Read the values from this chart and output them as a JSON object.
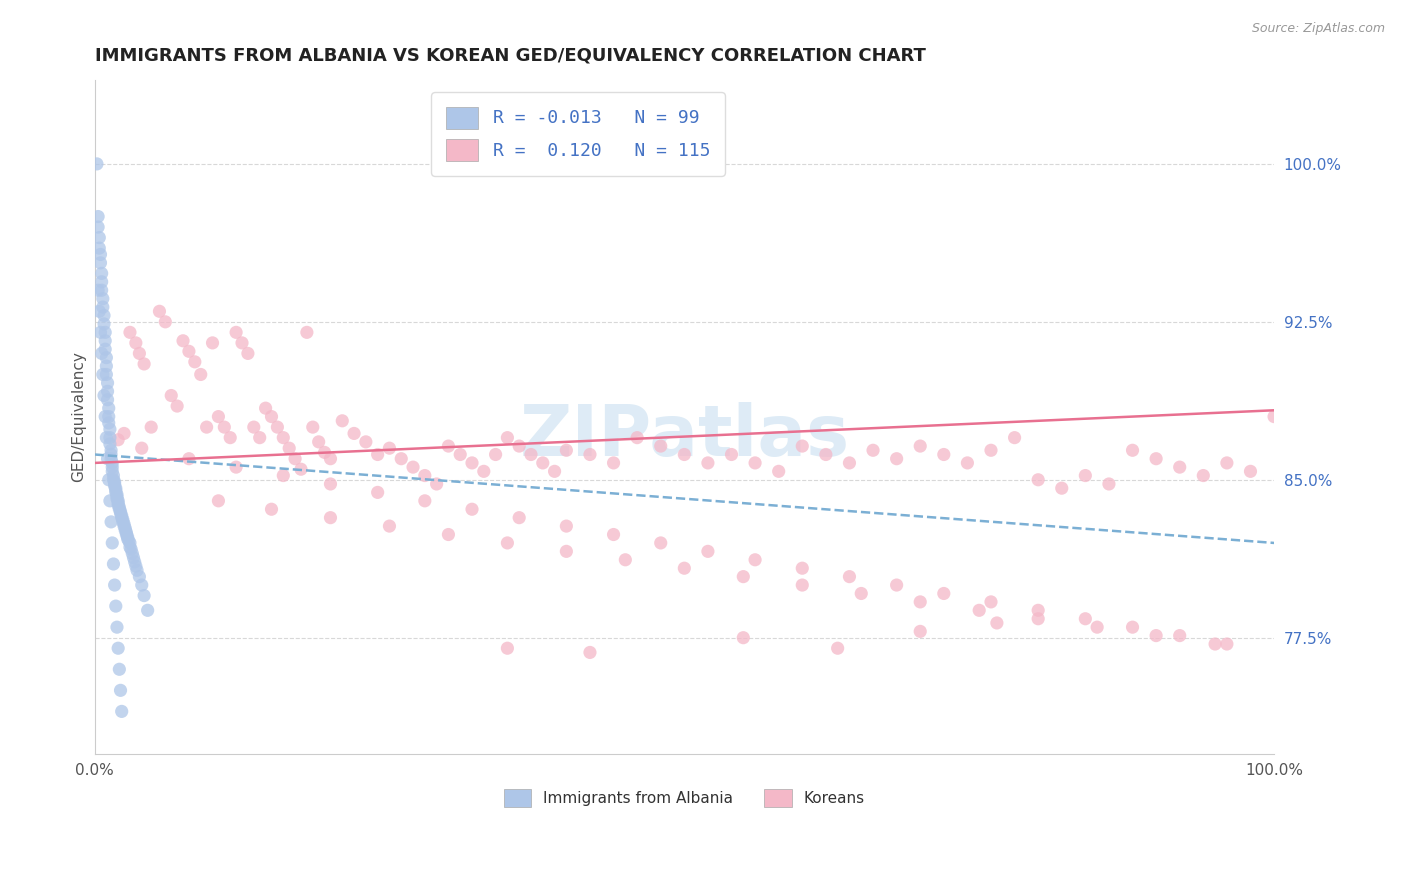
{
  "title": "IMMIGRANTS FROM ALBANIA VS KOREAN GED/EQUIVALENCY CORRELATION CHART",
  "source": "Source: ZipAtlas.com",
  "ylabel": "GED/Equivalency",
  "yticks": [
    "77.5%",
    "85.0%",
    "92.5%",
    "100.0%"
  ],
  "ytick_vals": [
    0.775,
    0.85,
    0.925,
    1.0
  ],
  "xrange": [
    0.0,
    1.0
  ],
  "yrange": [
    0.72,
    1.04
  ],
  "legend_entries": [
    {
      "label": "Immigrants from Albania",
      "color": "#aec6e8",
      "R": "-0.013",
      "N": "99"
    },
    {
      "label": "Koreans",
      "color": "#f4b8c8",
      "R": "0.120",
      "N": "115"
    }
  ],
  "blue_scatter_x": [
    0.002,
    0.003,
    0.003,
    0.004,
    0.004,
    0.005,
    0.005,
    0.006,
    0.006,
    0.006,
    0.007,
    0.007,
    0.008,
    0.008,
    0.009,
    0.009,
    0.009,
    0.01,
    0.01,
    0.01,
    0.011,
    0.011,
    0.011,
    0.012,
    0.012,
    0.012,
    0.013,
    0.013,
    0.013,
    0.014,
    0.014,
    0.014,
    0.015,
    0.015,
    0.015,
    0.016,
    0.016,
    0.017,
    0.017,
    0.017,
    0.018,
    0.018,
    0.018,
    0.019,
    0.019,
    0.019,
    0.02,
    0.02,
    0.02,
    0.021,
    0.021,
    0.022,
    0.022,
    0.023,
    0.023,
    0.024,
    0.024,
    0.025,
    0.025,
    0.026,
    0.026,
    0.027,
    0.027,
    0.028,
    0.028,
    0.029,
    0.03,
    0.03,
    0.031,
    0.032,
    0.033,
    0.034,
    0.035,
    0.036,
    0.038,
    0.04,
    0.042,
    0.045,
    0.003,
    0.004,
    0.005,
    0.006,
    0.007,
    0.008,
    0.009,
    0.01,
    0.011,
    0.012,
    0.013,
    0.014,
    0.015,
    0.016,
    0.017,
    0.018,
    0.019,
    0.02,
    0.021,
    0.022,
    0.023
  ],
  "blue_scatter_y": [
    1.0,
    0.975,
    0.97,
    0.965,
    0.96,
    0.957,
    0.953,
    0.948,
    0.944,
    0.94,
    0.936,
    0.932,
    0.928,
    0.924,
    0.92,
    0.916,
    0.912,
    0.908,
    0.904,
    0.9,
    0.896,
    0.892,
    0.888,
    0.884,
    0.88,
    0.877,
    0.874,
    0.87,
    0.867,
    0.864,
    0.862,
    0.86,
    0.858,
    0.856,
    0.854,
    0.852,
    0.85,
    0.849,
    0.848,
    0.847,
    0.846,
    0.845,
    0.844,
    0.843,
    0.842,
    0.841,
    0.84,
    0.839,
    0.838,
    0.837,
    0.836,
    0.835,
    0.834,
    0.833,
    0.832,
    0.831,
    0.83,
    0.829,
    0.828,
    0.827,
    0.826,
    0.825,
    0.824,
    0.823,
    0.822,
    0.821,
    0.82,
    0.818,
    0.817,
    0.815,
    0.813,
    0.811,
    0.809,
    0.807,
    0.804,
    0.8,
    0.795,
    0.788,
    0.94,
    0.93,
    0.92,
    0.91,
    0.9,
    0.89,
    0.88,
    0.87,
    0.86,
    0.85,
    0.84,
    0.83,
    0.82,
    0.81,
    0.8,
    0.79,
    0.78,
    0.77,
    0.76,
    0.75,
    0.74
  ],
  "pink_scatter_x": [
    0.02,
    0.025,
    0.03,
    0.035,
    0.038,
    0.042,
    0.048,
    0.055,
    0.06,
    0.065,
    0.07,
    0.075,
    0.08,
    0.085,
    0.09,
    0.095,
    0.1,
    0.105,
    0.11,
    0.115,
    0.12,
    0.125,
    0.13,
    0.135,
    0.14,
    0.145,
    0.15,
    0.155,
    0.16,
    0.165,
    0.17,
    0.175,
    0.18,
    0.185,
    0.19,
    0.195,
    0.2,
    0.21,
    0.22,
    0.23,
    0.24,
    0.25,
    0.26,
    0.27,
    0.28,
    0.29,
    0.3,
    0.31,
    0.32,
    0.33,
    0.34,
    0.35,
    0.36,
    0.37,
    0.38,
    0.39,
    0.4,
    0.42,
    0.44,
    0.46,
    0.48,
    0.5,
    0.52,
    0.54,
    0.56,
    0.58,
    0.6,
    0.62,
    0.64,
    0.66,
    0.68,
    0.7,
    0.72,
    0.74,
    0.76,
    0.78,
    0.8,
    0.82,
    0.84,
    0.86,
    0.88,
    0.9,
    0.92,
    0.94,
    0.96,
    0.98,
    1.0,
    0.04,
    0.08,
    0.12,
    0.16,
    0.2,
    0.24,
    0.28,
    0.32,
    0.36,
    0.4,
    0.44,
    0.48,
    0.52,
    0.56,
    0.6,
    0.64,
    0.68,
    0.72,
    0.76,
    0.8,
    0.84,
    0.88,
    0.92,
    0.96,
    0.105,
    0.15,
    0.2,
    0.25,
    0.3,
    0.35,
    0.4,
    0.45,
    0.5,
    0.55,
    0.6,
    0.65,
    0.7,
    0.75,
    0.8,
    0.85,
    0.9,
    0.95,
    0.55,
    0.63,
    0.7,
    0.765,
    0.35,
    0.42
  ],
  "pink_scatter_y": [
    0.869,
    0.872,
    0.92,
    0.915,
    0.91,
    0.905,
    0.875,
    0.93,
    0.925,
    0.89,
    0.885,
    0.916,
    0.911,
    0.906,
    0.9,
    0.875,
    0.915,
    0.88,
    0.875,
    0.87,
    0.92,
    0.915,
    0.91,
    0.875,
    0.87,
    0.884,
    0.88,
    0.875,
    0.87,
    0.865,
    0.86,
    0.855,
    0.92,
    0.875,
    0.868,
    0.863,
    0.86,
    0.878,
    0.872,
    0.868,
    0.862,
    0.865,
    0.86,
    0.856,
    0.852,
    0.848,
    0.866,
    0.862,
    0.858,
    0.854,
    0.862,
    0.87,
    0.866,
    0.862,
    0.858,
    0.854,
    0.864,
    0.862,
    0.858,
    0.87,
    0.866,
    0.862,
    0.858,
    0.862,
    0.858,
    0.854,
    0.866,
    0.862,
    0.858,
    0.864,
    0.86,
    0.866,
    0.862,
    0.858,
    0.864,
    0.87,
    0.85,
    0.846,
    0.852,
    0.848,
    0.864,
    0.86,
    0.856,
    0.852,
    0.858,
    0.854,
    0.88,
    0.865,
    0.86,
    0.856,
    0.852,
    0.848,
    0.844,
    0.84,
    0.836,
    0.832,
    0.828,
    0.824,
    0.82,
    0.816,
    0.812,
    0.808,
    0.804,
    0.8,
    0.796,
    0.792,
    0.788,
    0.784,
    0.78,
    0.776,
    0.772,
    0.84,
    0.836,
    0.832,
    0.828,
    0.824,
    0.82,
    0.816,
    0.812,
    0.808,
    0.804,
    0.8,
    0.796,
    0.792,
    0.788,
    0.784,
    0.78,
    0.776,
    0.772,
    0.775,
    0.77,
    0.778,
    0.782,
    0.77,
    0.768
  ],
  "blue_line_y_start": 0.862,
  "blue_line_y_end": 0.82,
  "pink_line_y_start": 0.858,
  "pink_line_y_end": 0.883,
  "blue_line_color": "#7bafd4",
  "pink_line_color": "#e87090",
  "scatter_blue_color": "#aec6e8",
  "scatter_pink_color": "#f4b8c8",
  "scatter_alpha": 0.75,
  "scatter_size": 90,
  "background_color": "#ffffff",
  "grid_color": "#d8d8d8",
  "title_fontsize": 13,
  "axis_label_fontsize": 11,
  "tick_fontsize": 11,
  "watermark_text": "ZIPatlas",
  "watermark_color": "#c8dff0",
  "watermark_fontsize": 52
}
